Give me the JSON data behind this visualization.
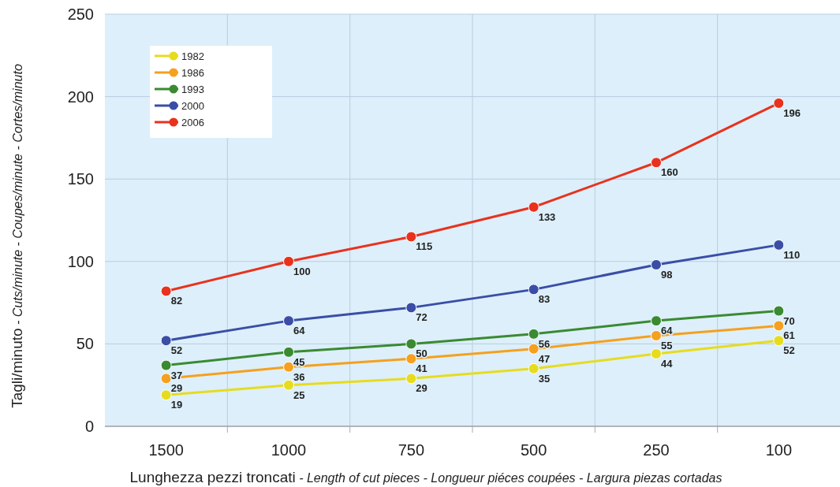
{
  "chart_data": {
    "type": "line",
    "xlabel": "Lunghezza pezzi troncati - Length of cut pieces - Longueur piéces coupées - Largura piezas cortadas",
    "ylabel": "Tagli/minuto - Cuts/minute - Coupes/minute - Cortes/minuto",
    "categories": [
      "1500",
      "1000",
      "750",
      "500",
      "250",
      "100"
    ],
    "ylim": [
      0,
      250
    ],
    "yticks": [
      0,
      50,
      100,
      150,
      200,
      250
    ],
    "grid": true,
    "legend": "top left",
    "marker": "circle",
    "line_style": "solid",
    "data_labels": true,
    "series": [
      {
        "name": "1982",
        "color": "#e6dc1e",
        "values": [
          19,
          25,
          29,
          35,
          44,
          52
        ]
      },
      {
        "name": "1986",
        "color": "#f5a01e",
        "values": [
          29,
          36,
          41,
          47,
          55,
          61
        ]
      },
      {
        "name": "1993",
        "color": "#3a8a32",
        "values": [
          37,
          45,
          50,
          56,
          64,
          70
        ]
      },
      {
        "name": "2000",
        "color": "#3a4ea6",
        "values": [
          52,
          64,
          72,
          83,
          98,
          110
        ]
      },
      {
        "name": "2006",
        "color": "#e8321e",
        "values": [
          82,
          100,
          115,
          133,
          160,
          196
        ]
      }
    ]
  }
}
